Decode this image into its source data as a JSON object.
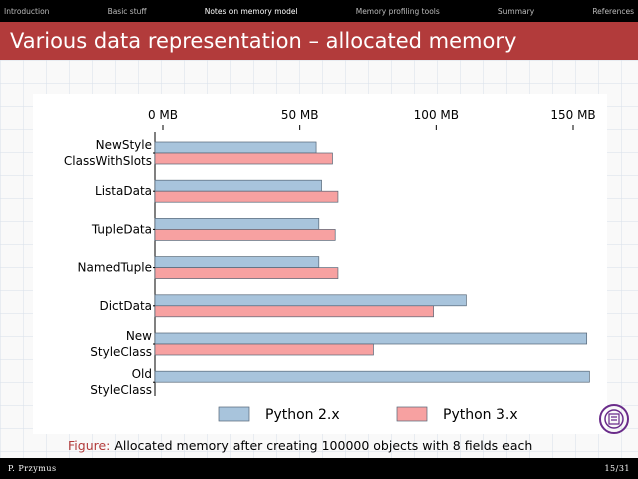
{
  "nav": {
    "items": [
      "Introduction",
      "Basic stuff",
      "Notes on memory model",
      "Memory profiling tools",
      "Summary",
      "References"
    ],
    "active_index": 2
  },
  "slide": {
    "title": "Various data representation – allocated memory"
  },
  "chart_data": {
    "type": "bar",
    "orientation": "horizontal",
    "categories": [
      [
        "NewStyle",
        "ClassWithSlots"
      ],
      [
        "ListaData"
      ],
      [
        "TupleData"
      ],
      [
        "NamedTuple"
      ],
      [
        "DictData"
      ],
      [
        "New",
        "StyleClass"
      ],
      [
        "Old",
        "StyleClass"
      ]
    ],
    "series": [
      {
        "name": "Python 2.x",
        "color": "#a8c4dc",
        "values": [
          56,
          58,
          57,
          57,
          111,
          155,
          156
        ]
      },
      {
        "name": "Python 3.x",
        "color": "#f7a1a1",
        "values": [
          62,
          64,
          63,
          64,
          99,
          77,
          null
        ]
      }
    ],
    "x_ticks": [
      "0 MB",
      "50 MB",
      "100 MB",
      "150 MB"
    ],
    "x_tick_values": [
      0,
      50,
      100,
      150
    ],
    "xlim": [
      0,
      160
    ],
    "axis_position": "top",
    "legend_position": "bottom",
    "caption_label": "Figure:",
    "caption_text": "Allocated memory after creating 100000 objects with 8 fields each"
  },
  "footer": {
    "author": "P. Przymus",
    "page": "15/31"
  },
  "colors": {
    "accent": "#b23b3b",
    "nav_bg": "#000000"
  },
  "icons": {
    "logo": "university-seal-icon"
  }
}
